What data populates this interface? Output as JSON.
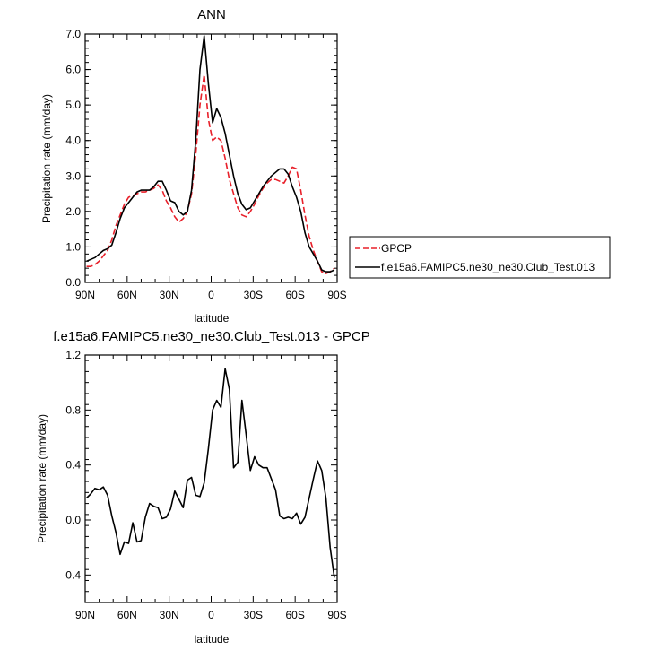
{
  "chart_data": [
    {
      "type": "line",
      "title": "ANN",
      "xlabel": "latitude",
      "ylabel": "Precipitation rate (mm/day)",
      "xlim": [
        90,
        -90
      ],
      "ylim": [
        0.0,
        7.0
      ],
      "x_ticks": [
        90,
        60,
        30,
        0,
        -30,
        -60,
        -90
      ],
      "x_tick_labels": [
        "90N",
        "60N",
        "30N",
        "0",
        "30S",
        "60S",
        "90S"
      ],
      "y_ticks": [
        0,
        1,
        2,
        3,
        4,
        5,
        6,
        7
      ],
      "y_tick_labels": [
        "0.0",
        "1.0",
        "2.0",
        "3.0",
        "4.0",
        "5.0",
        "6.0",
        "7.0"
      ],
      "legend_position": "right",
      "series": [
        {
          "name": "GPCP",
          "color": "#e8202a",
          "dash": "dashed",
          "x": [
            89,
            86,
            83,
            80,
            77,
            74,
            71,
            68,
            65,
            62,
            59,
            56,
            53,
            50,
            47,
            44,
            41,
            38,
            35,
            32,
            29,
            26,
            23,
            20,
            17,
            14,
            11,
            8,
            5,
            2,
            -1,
            -4,
            -7,
            -10,
            -13,
            -16,
            -19,
            -22,
            -25,
            -28,
            -31,
            -34,
            -37,
            -40,
            -43,
            -46,
            -49,
            -52,
            -55,
            -58,
            -61,
            -64,
            -67,
            -70,
            -73,
            -76,
            -79,
            -82,
            -85,
            -88
          ],
          "y": [
            0.45,
            0.45,
            0.5,
            0.6,
            0.75,
            0.9,
            1.2,
            1.6,
            1.9,
            2.2,
            2.4,
            2.45,
            2.5,
            2.55,
            2.55,
            2.6,
            2.65,
            2.75,
            2.6,
            2.3,
            2.1,
            1.85,
            1.7,
            1.8,
            2.0,
            2.5,
            3.6,
            5.0,
            5.85,
            4.6,
            4.0,
            4.1,
            4.0,
            3.5,
            2.9,
            2.5,
            2.1,
            1.9,
            1.85,
            2.0,
            2.2,
            2.45,
            2.65,
            2.8,
            2.9,
            2.9,
            2.85,
            2.8,
            3.0,
            3.25,
            3.2,
            2.6,
            1.9,
            1.3,
            0.9,
            0.6,
            0.3,
            0.25,
            0.3,
            0.4
          ]
        },
        {
          "name": "f.e15a6.FAMIPC5.ne30_ne30.Club_Test.013",
          "color": "#000000",
          "dash": "solid",
          "x": [
            89,
            86,
            83,
            80,
            77,
            74,
            71,
            68,
            65,
            62,
            59,
            56,
            53,
            50,
            47,
            44,
            41,
            38,
            35,
            32,
            29,
            26,
            23,
            20,
            17,
            14,
            11,
            8,
            5,
            2,
            -1,
            -4,
            -7,
            -10,
            -13,
            -16,
            -19,
            -22,
            -25,
            -28,
            -31,
            -34,
            -37,
            -40,
            -43,
            -46,
            -49,
            -52,
            -55,
            -58,
            -61,
            -64,
            -67,
            -70,
            -73,
            -76,
            -79,
            -82,
            -85,
            -88
          ],
          "y": [
            0.6,
            0.65,
            0.7,
            0.8,
            0.9,
            0.95,
            1.05,
            1.4,
            1.8,
            2.1,
            2.25,
            2.4,
            2.55,
            2.6,
            2.6,
            2.6,
            2.7,
            2.85,
            2.85,
            2.6,
            2.3,
            2.25,
            2.0,
            1.9,
            2.0,
            2.6,
            4.0,
            6.0,
            6.95,
            5.6,
            4.5,
            4.9,
            4.65,
            4.2,
            3.6,
            3.0,
            2.5,
            2.2,
            2.05,
            2.1,
            2.3,
            2.5,
            2.7,
            2.85,
            3.0,
            3.1,
            3.2,
            3.2,
            3.05,
            2.7,
            2.4,
            2.0,
            1.4,
            1.0,
            0.8,
            0.6,
            0.35,
            0.3,
            0.3,
            0.35
          ]
        }
      ]
    },
    {
      "type": "line",
      "title": "f.e15a6.FAMIPC5.ne30_ne30.Club_Test.013 - GPCP",
      "xlabel": "latitude",
      "ylabel": "Precipitation rate (mm/day)",
      "xlim": [
        90,
        -90
      ],
      "ylim": [
        -0.6,
        1.2
      ],
      "x_ticks": [
        90,
        60,
        30,
        0,
        -30,
        -60,
        -90
      ],
      "x_tick_labels": [
        "90N",
        "60N",
        "30N",
        "0",
        "30S",
        "60S",
        "90S"
      ],
      "y_ticks": [
        -0.4,
        0.0,
        0.4,
        0.8,
        1.2
      ],
      "y_tick_labels": [
        "-0.4",
        "0.0",
        "0.4",
        "0.8",
        "1.2"
      ],
      "series": [
        {
          "color": "#000000",
          "dash": "solid",
          "x": [
            89,
            86,
            83,
            80,
            77,
            74,
            71,
            68,
            65,
            62,
            59,
            56,
            53,
            50,
            47,
            44,
            41,
            38,
            35,
            32,
            29,
            26,
            23,
            20,
            17,
            14,
            11,
            8,
            5,
            2,
            -1,
            -4,
            -7,
            -10,
            -13,
            -16,
            -19,
            -22,
            -25,
            -28,
            -31,
            -34,
            -37,
            -40,
            -43,
            -46,
            -49,
            -52,
            -55,
            -58,
            -61,
            -64,
            -67,
            -70,
            -73,
            -76,
            -79,
            -82,
            -85,
            -88
          ],
          "y": [
            0.16,
            0.19,
            0.23,
            0.22,
            0.24,
            0.18,
            0.03,
            -0.09,
            -0.25,
            -0.16,
            -0.17,
            -0.02,
            -0.16,
            -0.15,
            0.02,
            0.12,
            0.1,
            0.09,
            0.01,
            0.02,
            0.08,
            0.21,
            0.15,
            0.09,
            0.29,
            0.31,
            0.18,
            0.17,
            0.27,
            0.52,
            0.8,
            0.87,
            0.82,
            1.1,
            0.95,
            0.38,
            0.42,
            0.87,
            0.62,
            0.36,
            0.46,
            0.4,
            0.38,
            0.38,
            0.3,
            0.22,
            0.03,
            0.01,
            0.02,
            0.01,
            0.05,
            -0.03,
            0.02,
            0.16,
            0.3,
            0.43,
            0.36,
            0.16,
            -0.2,
            -0.42
          ]
        }
      ]
    }
  ]
}
